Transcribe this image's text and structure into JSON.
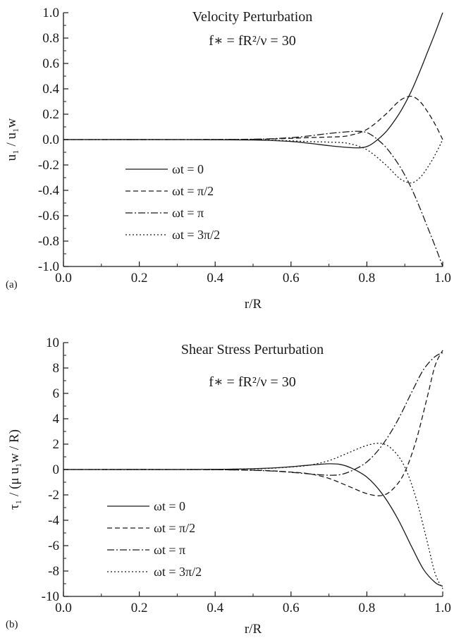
{
  "chart_data": [
    {
      "type": "line",
      "panel_label": "(a)",
      "title": "Velocity Perturbation",
      "subtitle": "f∗ = fR²/ν = 30",
      "xlabel": "r/R",
      "ylabel": "u₁ / u₁w",
      "xlim": [
        0.0,
        1.0
      ],
      "ylim": [
        -1.0,
        1.0
      ],
      "x_ticks": [
        "0.0",
        "0.2",
        "0.4",
        "0.6",
        "0.8",
        "1.0"
      ],
      "y_ticks": [
        "1.0",
        "0.8",
        "0.6",
        "0.4",
        "0.2",
        "0.0",
        "-0.2",
        "-0.4",
        "-0.6",
        "-0.8",
        "-1.0"
      ],
      "grid": false,
      "legend_position": "lower-left",
      "series": [
        {
          "name": "ωt = 0",
          "style": "solid",
          "x": [
            0.0,
            0.3,
            0.5,
            0.6,
            0.65,
            0.7,
            0.75,
            0.78,
            0.8,
            0.82,
            0.85,
            0.88,
            0.9,
            0.92,
            0.94,
            0.96,
            0.98,
            1.0
          ],
          "y": [
            0.0,
            0.0,
            -0.003,
            -0.015,
            -0.03,
            -0.048,
            -0.062,
            -0.065,
            -0.055,
            -0.02,
            0.06,
            0.18,
            0.28,
            0.4,
            0.54,
            0.69,
            0.84,
            1.0
          ]
        },
        {
          "name": "ωt = π/2",
          "style": "dashed",
          "x": [
            0.0,
            0.3,
            0.5,
            0.6,
            0.65,
            0.7,
            0.75,
            0.8,
            0.85,
            0.88,
            0.9,
            0.92,
            0.94,
            0.96,
            0.98,
            1.0
          ],
          "y": [
            0.0,
            0.0,
            0.002,
            0.01,
            0.016,
            0.02,
            0.03,
            0.08,
            0.2,
            0.29,
            0.33,
            0.34,
            0.3,
            0.22,
            0.12,
            0.0
          ]
        },
        {
          "name": "ωt = π",
          "style": "dashdot",
          "x": [
            0.0,
            0.3,
            0.5,
            0.6,
            0.65,
            0.7,
            0.75,
            0.78,
            0.8,
            0.82,
            0.85,
            0.88,
            0.9,
            0.92,
            0.94,
            0.96,
            0.98,
            1.0
          ],
          "y": [
            0.0,
            0.0,
            0.003,
            0.015,
            0.03,
            0.048,
            0.062,
            0.065,
            0.055,
            0.02,
            -0.06,
            -0.18,
            -0.28,
            -0.4,
            -0.54,
            -0.69,
            -0.84,
            -1.0
          ]
        },
        {
          "name": "ωt = 3π/2",
          "style": "dotted",
          "x": [
            0.0,
            0.3,
            0.5,
            0.6,
            0.65,
            0.7,
            0.75,
            0.8,
            0.85,
            0.88,
            0.9,
            0.92,
            0.94,
            0.96,
            0.98,
            1.0
          ],
          "y": [
            0.0,
            0.0,
            -0.002,
            -0.01,
            -0.016,
            -0.02,
            -0.03,
            -0.08,
            -0.2,
            -0.29,
            -0.33,
            -0.34,
            -0.3,
            -0.22,
            -0.12,
            0.0
          ]
        }
      ]
    },
    {
      "type": "line",
      "panel_label": "(b)",
      "title": "Shear Stress Perturbation",
      "subtitle": "f∗ = fR²/ν = 30",
      "xlabel": "r/R",
      "ylabel": "τ₁ / (μ u₁w / R)",
      "xlim": [
        0.0,
        1.0
      ],
      "ylim": [
        -10,
        10
      ],
      "x_ticks": [
        "0.0",
        "0.2",
        "0.4",
        "0.6",
        "0.8",
        "1.0"
      ],
      "y_ticks": [
        "10",
        "8",
        "6",
        "4",
        "2",
        "0",
        "-2",
        "-4",
        "-6",
        "-8",
        "-10"
      ],
      "grid": false,
      "legend_position": "lower-left",
      "series": [
        {
          "name": "ωt = 0",
          "style": "solid",
          "x": [
            0.0,
            0.3,
            0.45,
            0.55,
            0.6,
            0.65,
            0.7,
            0.73,
            0.76,
            0.8,
            0.84,
            0.88,
            0.92,
            0.95,
            0.98,
            1.0
          ],
          "y": [
            0.0,
            0.0,
            0.03,
            0.12,
            0.22,
            0.35,
            0.45,
            0.4,
            0.1,
            -0.6,
            -1.9,
            -3.8,
            -6.2,
            -7.9,
            -8.9,
            -9.2
          ]
        },
        {
          "name": "ωt = π/2",
          "style": "dashed",
          "x": [
            0.0,
            0.3,
            0.5,
            0.6,
            0.65,
            0.7,
            0.75,
            0.8,
            0.84,
            0.87,
            0.9,
            0.93,
            0.96,
            0.98,
            1.0
          ],
          "y": [
            0.0,
            0.0,
            -0.05,
            -0.2,
            -0.35,
            -0.7,
            -1.3,
            -1.9,
            -2.05,
            -1.5,
            -0.2,
            2.3,
            5.8,
            8.2,
            9.4
          ]
        },
        {
          "name": "ωt = π",
          "style": "dashdot",
          "x": [
            0.0,
            0.3,
            0.45,
            0.55,
            0.6,
            0.65,
            0.7,
            0.73,
            0.76,
            0.8,
            0.84,
            0.88,
            0.92,
            0.95,
            0.98,
            1.0
          ],
          "y": [
            0.0,
            0.0,
            -0.03,
            -0.12,
            -0.22,
            -0.35,
            -0.45,
            -0.4,
            -0.1,
            0.6,
            1.9,
            3.8,
            6.2,
            7.9,
            8.9,
            9.2
          ]
        },
        {
          "name": "ωt = 3π/2",
          "style": "dotted",
          "x": [
            0.0,
            0.3,
            0.5,
            0.6,
            0.65,
            0.7,
            0.75,
            0.8,
            0.84,
            0.87,
            0.9,
            0.93,
            0.96,
            0.98,
            1.0
          ],
          "y": [
            0.0,
            0.0,
            0.05,
            0.2,
            0.35,
            0.7,
            1.3,
            1.9,
            2.05,
            1.5,
            0.2,
            -2.3,
            -5.8,
            -8.2,
            -9.4
          ]
        }
      ]
    }
  ]
}
